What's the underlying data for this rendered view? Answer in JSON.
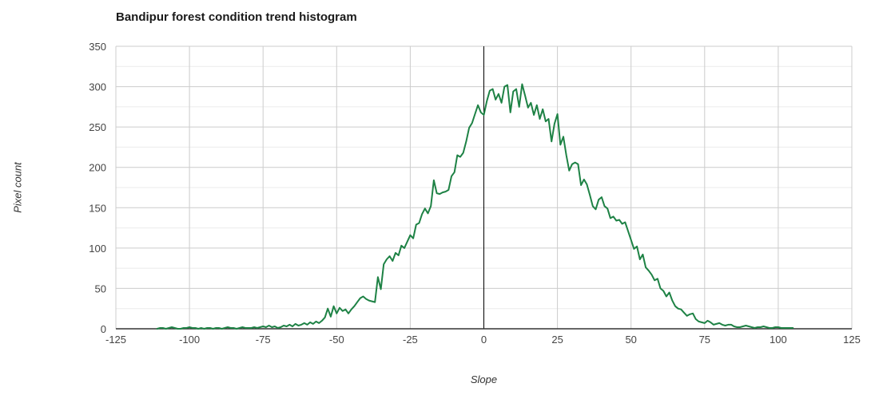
{
  "title": "Bandipur forest condition trend histogram",
  "colors": {
    "line": "#1e8245",
    "grid_major": "#cccccc",
    "grid_minor": "#ebebeb",
    "axis_line": "#333333",
    "zero_line": "#000000",
    "tick_text": "#444444",
    "title_text": "#1a1a1a",
    "axis_title_text": "#333333"
  },
  "chart_data": {
    "type": "line",
    "title": "Bandipur forest condition trend histogram",
    "xlabel": "Slope",
    "ylabel": "Pixel count",
    "xlim": [
      -125,
      125
    ],
    "ylim": [
      0,
      350
    ],
    "x_ticks": [
      -125,
      -100,
      -75,
      -50,
      -25,
      0,
      25,
      50,
      75,
      100,
      125
    ],
    "y_ticks": [
      0,
      50,
      100,
      150,
      200,
      250,
      300,
      350
    ],
    "y_minor_ticks": [
      25,
      75,
      125,
      175,
      225,
      275,
      325
    ],
    "grid": "on",
    "legend": "none",
    "zero_line_x": 0,
    "series": [
      {
        "name": "pixel_count",
        "color": "#1e8245",
        "x_start": -111,
        "x_step": 1,
        "values": [
          0,
          1,
          1,
          0,
          1,
          2,
          1,
          0,
          0,
          1,
          1,
          2,
          1,
          1,
          0,
          1,
          0,
          1,
          1,
          0,
          1,
          1,
          0,
          1,
          2,
          1,
          1,
          0,
          1,
          2,
          1,
          1,
          1,
          2,
          1,
          2,
          3,
          2,
          4,
          2,
          3,
          1,
          2,
          4,
          3,
          5,
          3,
          6,
          4,
          5,
          7,
          5,
          8,
          6,
          9,
          7,
          10,
          14,
          25,
          15,
          28,
          19,
          26,
          22,
          24,
          19,
          24,
          28,
          33,
          38,
          40,
          37,
          35,
          34,
          33,
          64,
          49,
          80,
          86,
          90,
          84,
          94,
          91,
          103,
          100,
          108,
          116,
          112,
          129,
          131,
          142,
          149,
          143,
          152,
          184,
          168,
          167,
          169,
          170,
          172,
          189,
          194,
          215,
          213,
          218,
          232,
          249,
          255,
          266,
          277,
          268,
          265,
          282,
          295,
          297,
          284,
          291,
          280,
          300,
          302,
          268,
          294,
          297,
          275,
          303,
          289,
          274,
          280,
          265,
          277,
          260,
          272,
          257,
          260,
          232,
          254,
          266,
          228,
          238,
          215,
          196,
          204,
          206,
          204,
          178,
          185,
          179,
          166,
          152,
          148,
          160,
          163,
          152,
          149,
          137,
          139,
          134,
          135,
          130,
          132,
          121,
          110,
          99,
          102,
          86,
          92,
          76,
          72,
          67,
          60,
          62,
          50,
          47,
          40,
          45,
          35,
          28,
          25,
          24,
          20,
          16,
          18,
          19,
          12,
          9,
          8,
          7,
          10,
          8,
          5,
          6,
          7,
          5,
          4,
          5,
          5,
          3,
          2,
          2,
          3,
          4,
          3,
          2,
          1,
          2,
          2,
          3,
          2,
          1,
          1,
          2,
          2,
          1,
          1,
          1,
          1,
          1
        ]
      }
    ]
  }
}
